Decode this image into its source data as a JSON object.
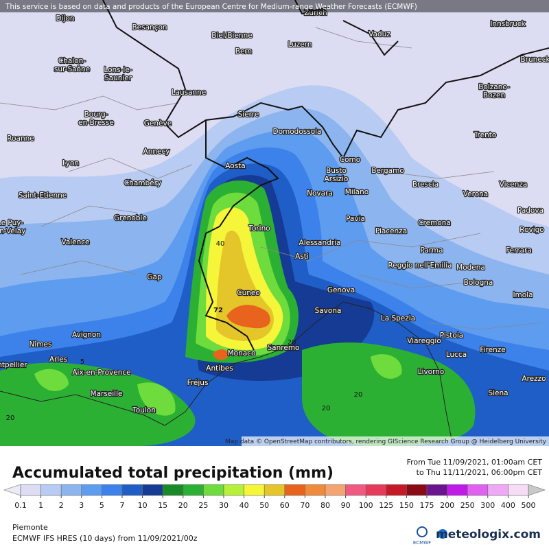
{
  "header": {
    "notice": "This service is based on data and products of the European Centre for Medium-range Weather Forecasts (ECMWF)",
    "attribution": "Map data © OpenStreetMap contributors, rendering GIScience Research Group @ Heidelberg University"
  },
  "map": {
    "cities": [
      "Dijon",
      "Besançon",
      "Biel/Bienne",
      "Zürich",
      "Vaduz",
      "Innsbruck",
      "Luzern",
      "Bern",
      [
        "Chalon-",
        "sur-Saône"
      ],
      [
        "Lons-le-",
        "Saunier"
      ],
      [
        "Bruneck",
        ""
      ],
      "Lausanne",
      [
        "Bolzano-",
        "Bozen"
      ],
      "Sierre",
      [
        "Bourg-",
        "en-Bresse"
      ],
      "Genève",
      "Domodossola",
      "Roanne",
      "Trento",
      "Annecy",
      "Como",
      "Lyon",
      "Aosta",
      [
        "Busto",
        "Arsizio"
      ],
      "Bergamo",
      "Chambéry",
      "Brescia",
      "Vicenza",
      "Saint-Etienne",
      "Novara",
      "Milano",
      "Verona",
      [
        "Le Puy-",
        "en-Velay"
      ],
      "Grenoble",
      "Pavia",
      "Padova",
      "Cremona",
      "Torino",
      "Piacenza",
      "Rovigo",
      "Valence",
      "Alessandria",
      "Parma",
      "Ferrara",
      "Asti",
      "Reggio nell'Emilia",
      "Modena",
      "Gap",
      "Bologna",
      "Genova",
      "Imola",
      "Cuneo",
      "Savona",
      "La Spezia",
      "Avignon",
      "Pistoia",
      "Nîmes",
      "Viareggio",
      "Sanremo",
      "Firenze",
      "Monaco",
      "Arles",
      "Lucca",
      "Aix-en-Provence",
      "Antibes",
      "Livorno",
      "Fréjus",
      "Arezzo",
      "Marseille",
      "Siena",
      "Toulon",
      "ntpellier"
    ],
    "contour_labels": [
      "40",
      "72",
      "20",
      "5",
      "20",
      "20",
      "20"
    ]
  },
  "legend": {
    "title": "Accumulated total precipitation (mm)",
    "period_from": "From Tue 11/09/2021, 01:00am CET",
    "period_to": "to Thu 11/11/2021, 06:00pm CET",
    "levels": [
      0.1,
      1,
      2,
      3,
      5,
      7,
      10,
      15,
      20,
      25,
      30,
      40,
      50,
      60,
      70,
      80,
      90,
      100,
      125,
      150,
      175,
      200,
      250,
      300,
      400,
      500
    ],
    "colors": [
      "#ebebf8",
      "#dcdcf2",
      "#b8cbf2",
      "#8cb4ee",
      "#5e9cf0",
      "#3c82ea",
      "#1f5ec6",
      "#163b94",
      "#1a8a28",
      "#2cb034",
      "#6edc3c",
      "#b6f03a",
      "#f5f53a",
      "#e4c62a",
      "#e8641e",
      "#f08a3c",
      "#f4a470",
      "#f05a82",
      "#e63a5a",
      "#c41a28",
      "#8a0a16",
      "#6a1490",
      "#c01ae8",
      "#e060f0",
      "#eea8f4",
      "#f6dcf6",
      "#c8c8c8"
    ]
  },
  "footer": {
    "region": "Piemonte",
    "model": "ECMWF IFS HRES (10 days) from 11/09/2021/00z",
    "brand": "meteologix.com",
    "ecmwf": "ECMWF"
  }
}
